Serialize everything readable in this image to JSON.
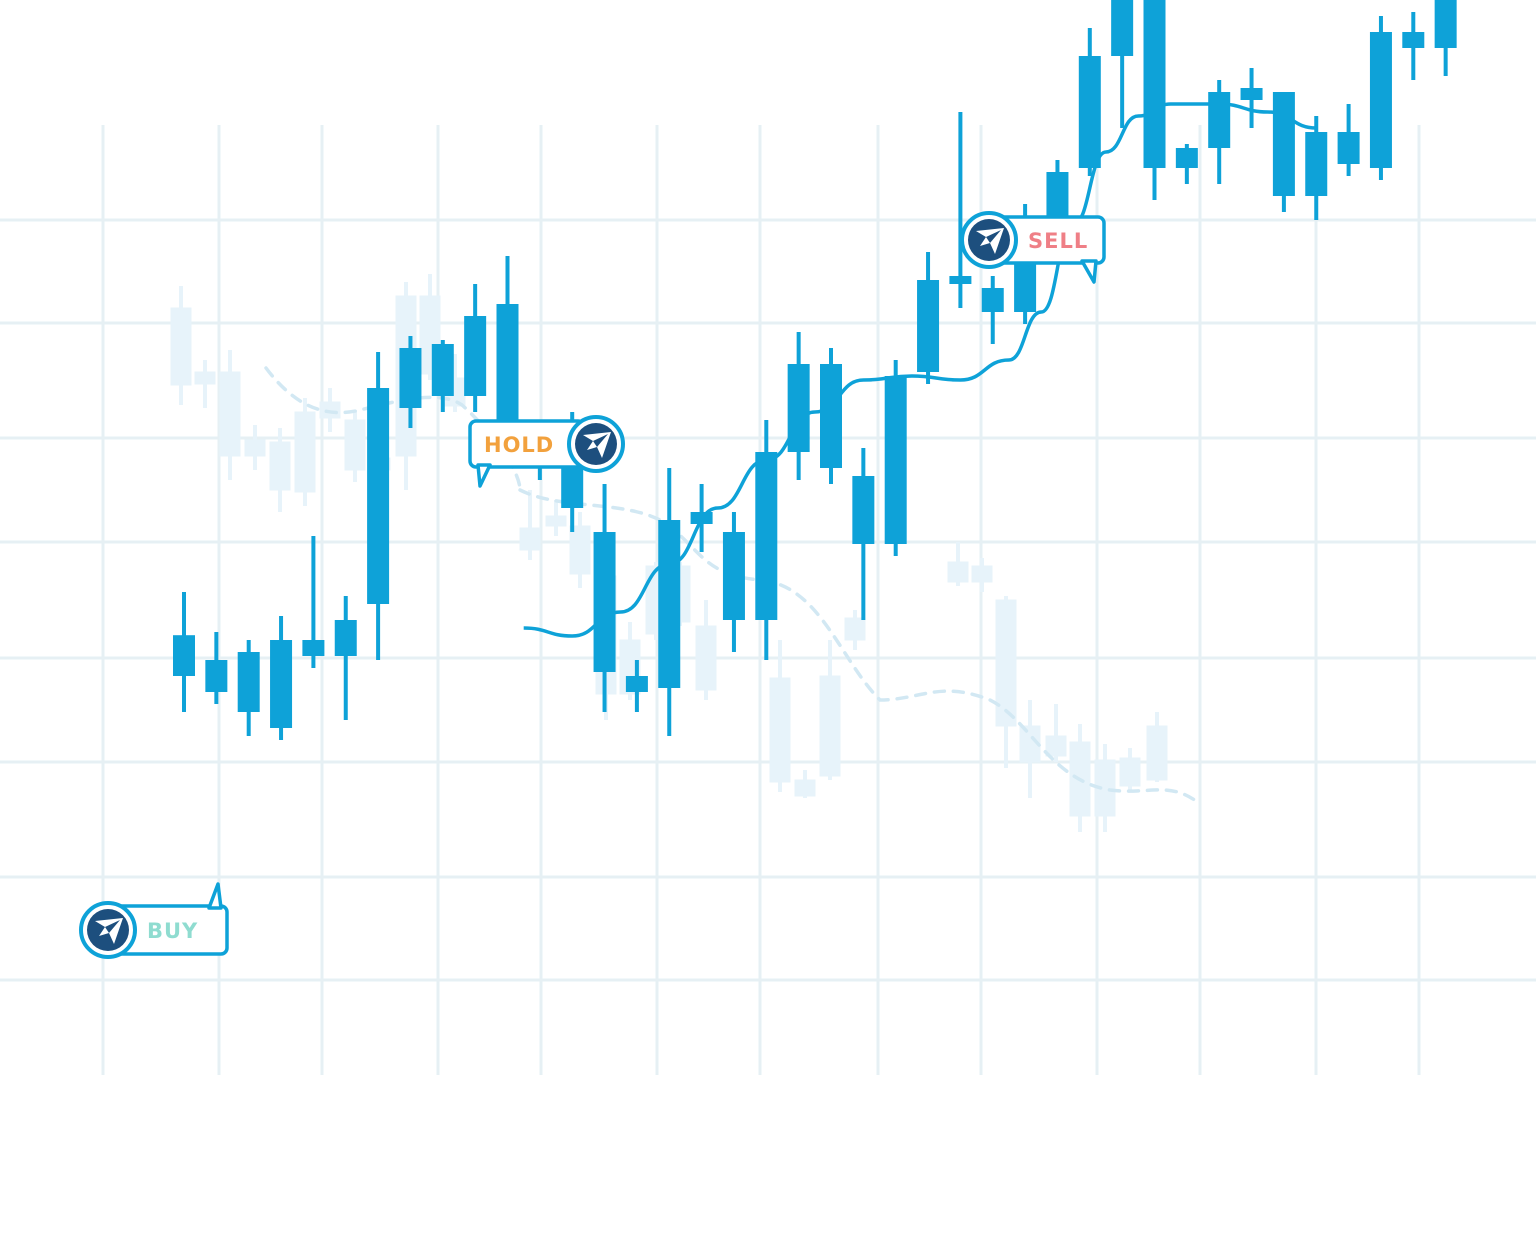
{
  "chart_data": {
    "type": "candlestick",
    "grid": true,
    "colors": {
      "candle": "#0ea2d8",
      "ghost_candle": "#e7f3fa",
      "grid": "#e6f0f4",
      "trend_line": "#0ea2d8",
      "ghost_trend_line": "#d2e8f3",
      "logo": "#1d4f7e"
    },
    "candles": [
      {
        "o": 45.6,
        "h": 51.0,
        "l": 36.0,
        "c": 40.5
      },
      {
        "o": 42.5,
        "h": 46.0,
        "l": 37.0,
        "c": 38.5
      },
      {
        "o": 36.0,
        "h": 45.0,
        "l": 33.0,
        "c": 43.5
      },
      {
        "o": 34.0,
        "h": 48.0,
        "l": 32.5,
        "c": 45.0
      },
      {
        "o": 43.0,
        "h": 58.0,
        "l": 41.5,
        "c": 45.0
      },
      {
        "o": 43.0,
        "h": 50.5,
        "l": 35.0,
        "c": 47.5
      },
      {
        "o": 49.5,
        "h": 81.0,
        "l": 42.5,
        "c": 76.5
      },
      {
        "o": 74.0,
        "h": 83.0,
        "l": 71.5,
        "c": 81.5
      },
      {
        "o": 75.5,
        "h": 82.5,
        "l": 73.5,
        "c": 82.0
      },
      {
        "o": 75.5,
        "h": 89.5,
        "l": 73.5,
        "c": 85.5
      },
      {
        "o": 87.0,
        "h": 93.0,
        "l": 66.5,
        "c": 67.5
      },
      {
        "o": 67.5,
        "h": 71.0,
        "l": 65.0,
        "c": 70.5
      },
      {
        "o": 70.5,
        "h": 73.5,
        "l": 58.5,
        "c": 61.5
      },
      {
        "o": 58.5,
        "h": 64.5,
        "l": 36.0,
        "c": 41.0
      },
      {
        "o": 38.5,
        "h": 42.5,
        "l": 36.0,
        "c": 40.5
      },
      {
        "o": 39.0,
        "h": 66.5,
        "l": 33.0,
        "c": 60.0
      },
      {
        "o": 61.0,
        "h": 64.5,
        "l": 56.0,
        "c": 59.5
      },
      {
        "o": 47.5,
        "h": 61.0,
        "l": 43.5,
        "c": 58.5
      },
      {
        "o": 47.5,
        "h": 72.5,
        "l": 42.5,
        "c": 68.5
      },
      {
        "o": 68.5,
        "h": 83.5,
        "l": 65.0,
        "c": 79.5
      },
      {
        "o": 79.5,
        "h": 81.5,
        "l": 64.5,
        "c": 66.5
      },
      {
        "o": 65.5,
        "h": 69.0,
        "l": 47.5,
        "c": 57.0
      },
      {
        "o": 57.0,
        "h": 80.0,
        "l": 55.5,
        "c": 78.0
      },
      {
        "o": 78.5,
        "h": 93.5,
        "l": 77.0,
        "c": 90.0
      },
      {
        "o": 89.5,
        "h": 111.0,
        "l": 86.5,
        "c": 90.5
      },
      {
        "o": 86.0,
        "h": 90.5,
        "l": 82.0,
        "c": 89.0
      },
      {
        "o": 86.0,
        "h": 99.5,
        "l": 84.5,
        "c": 96.5
      },
      {
        "o": 96.5,
        "h": 105.0,
        "l": 95.0,
        "c": 103.5
      },
      {
        "o": 104.0,
        "h": 121.5,
        "l": 103.0,
        "c": 118.0
      },
      {
        "o": 118.0,
        "h": 133.5,
        "l": 109.0,
        "c": 131.5
      },
      {
        "o": 131.5,
        "h": 132.5,
        "l": 100.0,
        "c": 104.0
      },
      {
        "o": 104.0,
        "h": 107.0,
        "l": 102.0,
        "c": 106.5
      },
      {
        "o": 106.5,
        "h": 115.0,
        "l": 102.0,
        "c": 113.5
      },
      {
        "o": 112.5,
        "h": 116.5,
        "l": 109.0,
        "c": 114.0
      },
      {
        "o": 113.5,
        "h": 113.5,
        "l": 98.5,
        "c": 100.5
      },
      {
        "o": 100.5,
        "h": 110.5,
        "l": 97.5,
        "c": 108.5
      },
      {
        "o": 104.5,
        "h": 112.0,
        "l": 103.0,
        "c": 108.5
      },
      {
        "o": 104.0,
        "h": 123.0,
        "l": 102.5,
        "c": 121.0
      },
      {
        "o": 121.0,
        "h": 123.5,
        "l": 115.0,
        "c": 119.0
      },
      {
        "o": 119.0,
        "h": 132.0,
        "l": 115.5,
        "c": 129.5
      }
    ],
    "trend_line": [
      {
        "i": 10.5,
        "v": 46.5
      },
      {
        "i": 12,
        "v": 45.5
      },
      {
        "i": 13.5,
        "v": 48.5
      },
      {
        "i": 15,
        "v": 54.5
      },
      {
        "i": 16.5,
        "v": 61.5
      },
      {
        "i": 18,
        "v": 67.5
      },
      {
        "i": 19.5,
        "v": 73.5
      },
      {
        "i": 21,
        "v": 77.5
      },
      {
        "i": 22.5,
        "v": 78.0
      },
      {
        "i": 24,
        "v": 77.5
      },
      {
        "i": 25.5,
        "v": 80.0
      },
      {
        "i": 26.5,
        "v": 86.0
      },
      {
        "i": 27.5,
        "v": 97.0
      },
      {
        "i": 28.5,
        "v": 106.0
      },
      {
        "i": 29.5,
        "v": 110.5
      },
      {
        "i": 30.5,
        "v": 112.0
      },
      {
        "i": 32,
        "v": 112.0
      },
      {
        "i": 33.5,
        "v": 111.0
      },
      {
        "i": 35,
        "v": 109.0
      }
    ],
    "signals": [
      {
        "label": "BUY",
        "color": "#8fdcd0",
        "candle": 2,
        "side": "left",
        "logo": "pointer-arrow-logo"
      },
      {
        "label": "HOLD",
        "color": "#f2a13d",
        "candle": 9,
        "side": "right",
        "logo": "pointer-arrow-logo"
      },
      {
        "label": "SELL",
        "color": "#ef7f86",
        "candle": 28,
        "side": "left",
        "logo": "pointer-arrow-logo"
      }
    ]
  }
}
